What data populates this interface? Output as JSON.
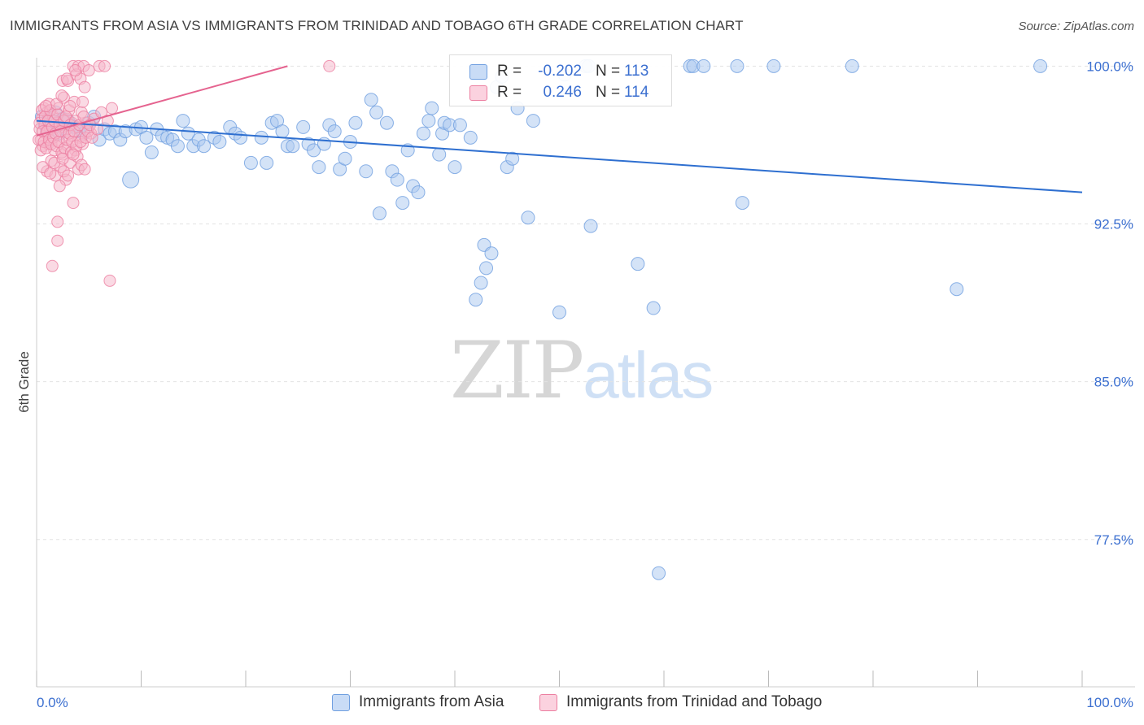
{
  "header": {
    "title": "IMMIGRANTS FROM ASIA VS IMMIGRANTS FROM TRINIDAD AND TOBAGO 6TH GRADE CORRELATION CHART",
    "source": "Source: ZipAtlas.com"
  },
  "watermark": {
    "zip": "ZIP",
    "atlas": "atlas"
  },
  "legend_top": {
    "rows": [
      {
        "r_label": "R =",
        "r_value": "-0.202",
        "n_label": "N =",
        "n_value": "113",
        "color": "#a9c8f0"
      },
      {
        "r_label": "R =",
        "r_value": "0.246",
        "n_label": "N =",
        "n_value": "114",
        "color": "#f5b6c9"
      }
    ]
  },
  "legend_bottom": {
    "asia": "Immigrants from Asia",
    "tt": "Immigrants from Trinidad and Tobago"
  },
  "colors": {
    "asia_fill": "#a9c8f0",
    "asia_stroke": "#6f9fe0",
    "asia_line": "#2e6fd0",
    "tt_fill": "#f5b6c9",
    "tt_stroke": "#ec7ea0",
    "tt_line": "#e5638f",
    "tick_label": "#3b6fd0",
    "grid": "#e3e3e3"
  },
  "chart_data": {
    "type": "scatter",
    "title": "IMMIGRANTS FROM ASIA VS IMMIGRANTS FROM TRINIDAD AND TOBAGO 6TH GRADE CORRELATION CHART",
    "xlabel": "",
    "ylabel": "6th Grade",
    "xlim": [
      0,
      100
    ],
    "ylim": [
      70.5,
      101.5
    ],
    "x_ticks": [
      0,
      10,
      20,
      30,
      40,
      50,
      60,
      70,
      80,
      90,
      100
    ],
    "x_tick_labels": [
      {
        "x": 0,
        "label": "0.0%"
      },
      {
        "x": 100,
        "label": "100.0%"
      }
    ],
    "y_ticks": [
      {
        "y": 77.5,
        "label": "77.5%"
      },
      {
        "y": 85.0,
        "label": "85.0%"
      },
      {
        "y": 92.5,
        "label": "92.5%"
      },
      {
        "y": 100.0,
        "label": "100.0%"
      }
    ],
    "grid": true,
    "series": [
      {
        "name": "Immigrants from Asia",
        "trend": {
          "x": [
            0,
            100
          ],
          "y": [
            97.4,
            94.0
          ]
        },
        "points": [
          [
            0.5,
            97.6
          ],
          [
            0.8,
            97.2
          ],
          [
            1.0,
            96.9
          ],
          [
            1.2,
            97.5
          ],
          [
            1.5,
            97.0
          ],
          [
            1.8,
            97.8
          ],
          [
            2.0,
            97.3
          ],
          [
            2.2,
            96.8
          ],
          [
            2.5,
            97.5
          ],
          [
            2.8,
            97.0
          ],
          [
            3.0,
            97.4
          ],
          [
            3.3,
            97.2
          ],
          [
            3.6,
            97.1
          ],
          [
            4.0,
            96.9
          ],
          [
            4.5,
            96.8
          ],
          [
            5.0,
            97.3
          ],
          [
            5.5,
            97.6
          ],
          [
            6.0,
            96.5
          ],
          [
            6.5,
            97.0
          ],
          [
            7.0,
            96.8
          ],
          [
            7.5,
            96.9
          ],
          [
            8.0,
            96.5
          ],
          [
            8.5,
            96.9
          ],
          [
            9.0,
            94.6
          ],
          [
            9.5,
            97.0
          ],
          [
            10.0,
            97.1
          ],
          [
            10.5,
            96.6
          ],
          [
            11.0,
            95.9
          ],
          [
            11.5,
            97.0
          ],
          [
            12.0,
            96.7
          ],
          [
            12.5,
            96.6
          ],
          [
            13.0,
            96.5
          ],
          [
            13.5,
            96.2
          ],
          [
            14.0,
            97.4
          ],
          [
            14.5,
            96.8
          ],
          [
            15.0,
            96.2
          ],
          [
            15.5,
            96.5
          ],
          [
            16.0,
            96.2
          ],
          [
            17.0,
            96.6
          ],
          [
            17.5,
            96.4
          ],
          [
            18.5,
            97.1
          ],
          [
            19.0,
            96.8
          ],
          [
            19.5,
            96.6
          ],
          [
            20.5,
            95.4
          ],
          [
            21.5,
            96.6
          ],
          [
            22.0,
            95.4
          ],
          [
            22.5,
            97.3
          ],
          [
            23.0,
            97.4
          ],
          [
            23.5,
            96.9
          ],
          [
            24.0,
            96.2
          ],
          [
            24.5,
            96.2
          ],
          [
            25.5,
            97.1
          ],
          [
            26.0,
            96.3
          ],
          [
            26.5,
            96.0
          ],
          [
            27.0,
            95.2
          ],
          [
            27.5,
            96.3
          ],
          [
            28.0,
            97.2
          ],
          [
            28.5,
            96.9
          ],
          [
            29.0,
            95.1
          ],
          [
            29.5,
            95.6
          ],
          [
            30.0,
            96.4
          ],
          [
            30.5,
            97.3
          ],
          [
            31.5,
            95.0
          ],
          [
            32.0,
            98.4
          ],
          [
            32.5,
            97.8
          ],
          [
            32.8,
            93.0
          ],
          [
            33.5,
            97.3
          ],
          [
            34.0,
            95.0
          ],
          [
            34.5,
            94.6
          ],
          [
            35.0,
            93.5
          ],
          [
            35.5,
            96.0
          ],
          [
            36.0,
            94.3
          ],
          [
            36.5,
            94.0
          ],
          [
            37.0,
            96.8
          ],
          [
            37.5,
            97.4
          ],
          [
            37.8,
            98.0
          ],
          [
            38.5,
            95.8
          ],
          [
            38.8,
            96.8
          ],
          [
            39.0,
            97.3
          ],
          [
            39.5,
            97.2
          ],
          [
            40.0,
            95.2
          ],
          [
            40.5,
            97.2
          ],
          [
            41.5,
            96.6
          ],
          [
            42.0,
            88.9
          ],
          [
            42.5,
            89.7
          ],
          [
            42.8,
            91.5
          ],
          [
            43.0,
            90.4
          ],
          [
            43.5,
            91.1
          ],
          [
            44.0,
            99.0
          ],
          [
            44.5,
            99.5
          ],
          [
            45.0,
            95.2
          ],
          [
            45.5,
            95.6
          ],
          [
            46.0,
            98.0
          ],
          [
            47.0,
            92.8
          ],
          [
            47.5,
            97.4
          ],
          [
            50.0,
            88.3
          ],
          [
            50.5,
            99.6
          ],
          [
            52.5,
            100.0
          ],
          [
            52.8,
            100.0
          ],
          [
            53.0,
            92.4
          ],
          [
            57.5,
            90.6
          ],
          [
            59.0,
            88.5
          ],
          [
            59.5,
            75.9
          ],
          [
            62.5,
            100.0
          ],
          [
            62.8,
            100.0
          ],
          [
            63.8,
            100.0
          ],
          [
            67.0,
            100.0
          ],
          [
            67.5,
            93.5
          ],
          [
            70.5,
            100.0
          ],
          [
            78.0,
            100.0
          ],
          [
            88.0,
            89.4
          ],
          [
            96.0,
            100.0
          ]
        ]
      },
      {
        "name": "Immigrants from Trinidad and Tobago",
        "trend": {
          "x": [
            0,
            24
          ],
          "y": [
            96.7,
            100.0
          ]
        },
        "points": [
          [
            0.3,
            97.0
          ],
          [
            0.4,
            96.5
          ],
          [
            0.5,
            97.5
          ],
          [
            0.6,
            96.2
          ],
          [
            0.7,
            98.0
          ],
          [
            0.8,
            97.2
          ],
          [
            0.9,
            96.8
          ],
          [
            1.0,
            95.0
          ],
          [
            1.0,
            97.8
          ],
          [
            1.1,
            96.3
          ],
          [
            1.2,
            98.2
          ],
          [
            1.3,
            97.0
          ],
          [
            1.4,
            95.5
          ],
          [
            1.5,
            96.7
          ],
          [
            1.5,
            90.5
          ],
          [
            1.6,
            97.6
          ],
          [
            1.7,
            96.0
          ],
          [
            1.8,
            94.8
          ],
          [
            1.9,
            97.3
          ],
          [
            2.0,
            92.6
          ],
          [
            2.0,
            91.7
          ],
          [
            2.1,
            98.0
          ],
          [
            2.2,
            96.4
          ],
          [
            2.3,
            95.2
          ],
          [
            2.4,
            97.1
          ],
          [
            2.5,
            99.3
          ],
          [
            2.5,
            95.8
          ],
          [
            2.6,
            98.5
          ],
          [
            2.7,
            96.9
          ],
          [
            2.8,
            94.6
          ],
          [
            2.9,
            97.5
          ],
          [
            3.0,
            99.3
          ],
          [
            3.0,
            96.2
          ],
          [
            3.1,
            97.9
          ],
          [
            3.2,
            95.4
          ],
          [
            3.3,
            96.7
          ],
          [
            3.4,
            97.3
          ],
          [
            3.5,
            100.0
          ],
          [
            3.5,
            93.5
          ],
          [
            3.6,
            98.3
          ],
          [
            3.7,
            96.0
          ],
          [
            3.8,
            99.6
          ],
          [
            3.9,
            97.1
          ],
          [
            4.0,
            100.0
          ],
          [
            4.0,
            95.1
          ],
          [
            4.1,
            96.6
          ],
          [
            4.2,
            99.4
          ],
          [
            4.3,
            97.8
          ],
          [
            4.4,
            96.3
          ],
          [
            4.5,
            100.0
          ],
          [
            4.6,
            99.0
          ],
          [
            4.8,
            97.3
          ],
          [
            5.0,
            99.8
          ],
          [
            5.2,
            96.8
          ],
          [
            5.5,
            97.5
          ],
          [
            6.0,
            100.0
          ],
          [
            6.2,
            97.8
          ],
          [
            6.5,
            100.0
          ],
          [
            7.0,
            89.8
          ],
          [
            7.2,
            98.0
          ],
          [
            28.0,
            100.0
          ],
          [
            0.2,
            96.5
          ],
          [
            0.3,
            97.3
          ],
          [
            0.4,
            96.0
          ],
          [
            0.5,
            97.9
          ],
          [
            0.6,
            96.9
          ],
          [
            0.7,
            96.4
          ],
          [
            0.8,
            97.6
          ],
          [
            0.9,
            96.1
          ],
          [
            1.0,
            96.9
          ],
          [
            1.1,
            97.4
          ],
          [
            1.2,
            96.5
          ],
          [
            1.3,
            97.9
          ],
          [
            1.4,
            96.3
          ],
          [
            1.5,
            97.1
          ],
          [
            1.6,
            96.6
          ],
          [
            1.7,
            97.4
          ],
          [
            1.8,
            96.8
          ],
          [
            1.9,
            96.2
          ],
          [
            2.0,
            97.7
          ],
          [
            2.1,
            96.4
          ],
          [
            2.2,
            97.2
          ],
          [
            2.3,
            96.9
          ],
          [
            2.4,
            95.9
          ],
          [
            2.6,
            97.4
          ],
          [
            2.7,
            96.1
          ],
          [
            2.8,
            97.6
          ],
          [
            2.9,
            96.5
          ],
          [
            3.1,
            96.8
          ],
          [
            3.2,
            97.2
          ],
          [
            3.3,
            95.9
          ],
          [
            3.4,
            96.4
          ],
          [
            3.6,
            96.9
          ],
          [
            3.7,
            97.4
          ],
          [
            3.8,
            96.2
          ],
          [
            3.9,
            95.7
          ],
          [
            4.1,
            97.2
          ],
          [
            4.2,
            96.4
          ],
          [
            4.3,
            95.3
          ],
          [
            4.5,
            97.6
          ],
          [
            4.7,
            96.6
          ],
          [
            4.9,
            96.9
          ],
          [
            5.1,
            97.2
          ],
          [
            5.3,
            96.6
          ],
          [
            0.6,
            95.2
          ],
          [
            1.3,
            94.9
          ],
          [
            2.2,
            94.3
          ],
          [
            2.6,
            95.0
          ],
          [
            3.0,
            94.8
          ],
          [
            1.9,
            98.2
          ],
          [
            2.4,
            98.6
          ],
          [
            3.2,
            98.1
          ],
          [
            2.9,
            99.4
          ],
          [
            3.7,
            99.8
          ],
          [
            4.4,
            98.3
          ],
          [
            5.8,
            97.0
          ],
          [
            6.8,
            97.4
          ],
          [
            0.9,
            98.1
          ],
          [
            1.7,
            95.4
          ],
          [
            2.5,
            95.6
          ],
          [
            3.5,
            95.8
          ],
          [
            4.6,
            95.1
          ]
        ]
      }
    ]
  }
}
